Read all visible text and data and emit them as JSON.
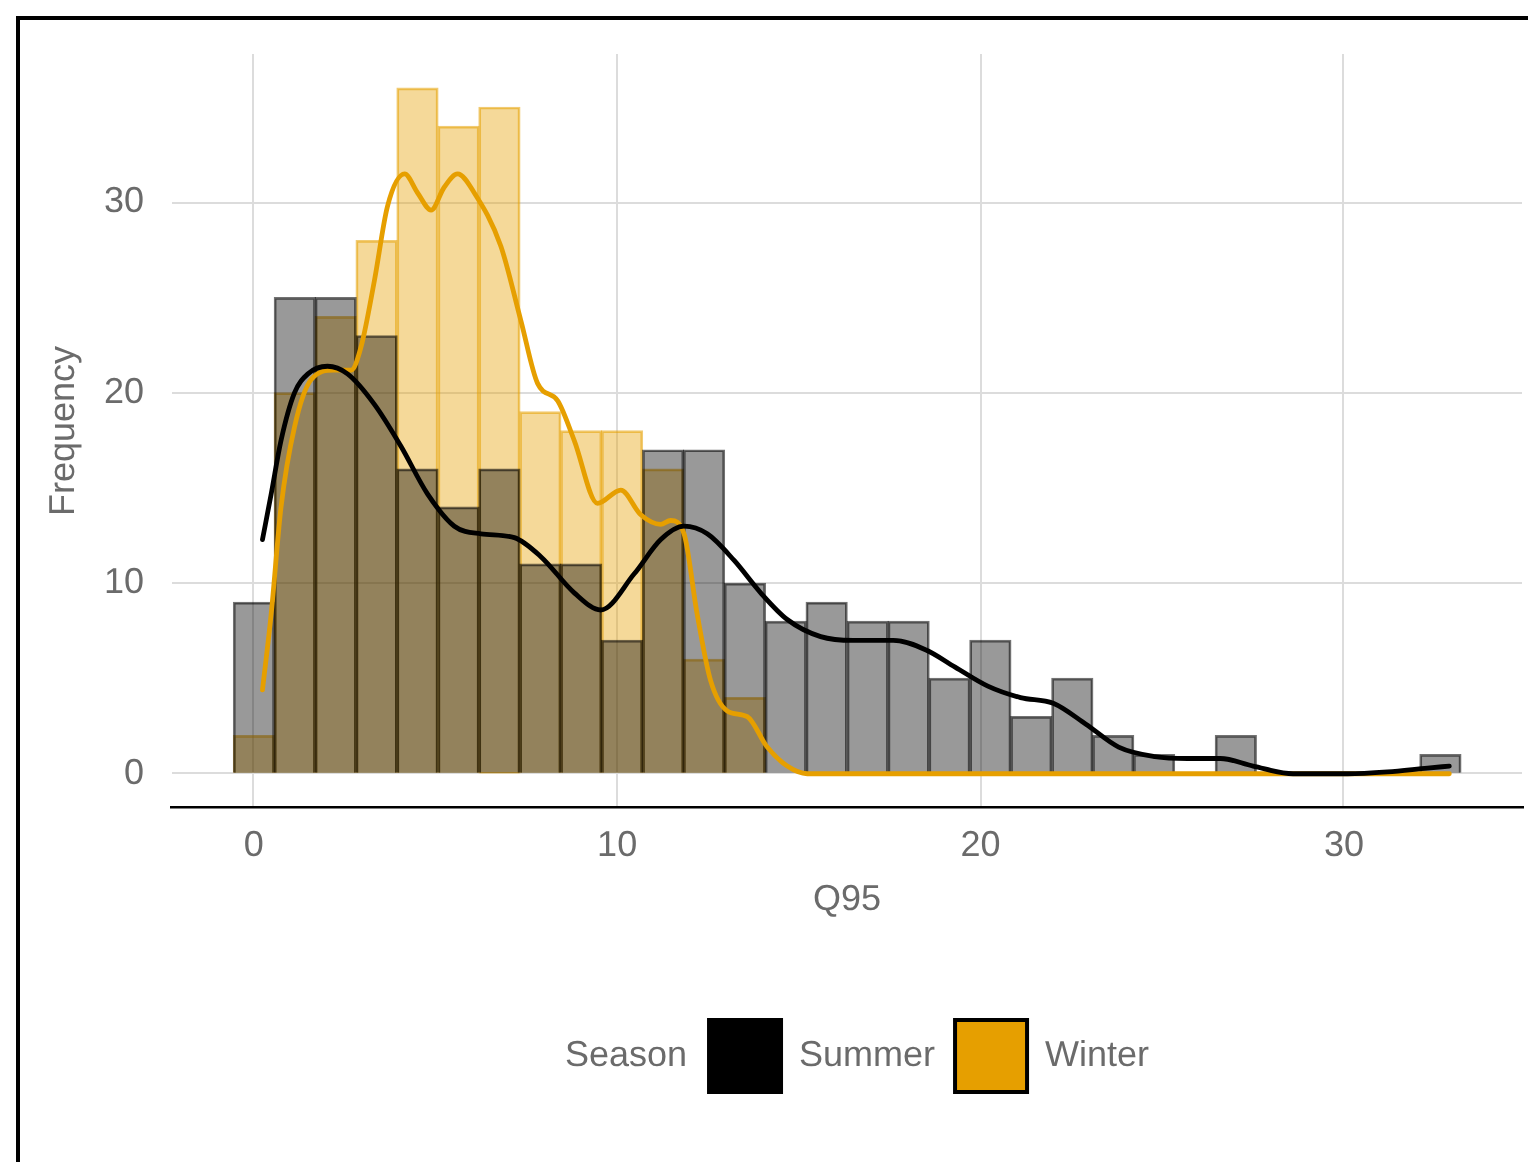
{
  "chart_data": {
    "type": "histogram",
    "xlabel": "Q95",
    "ylabel": "Frequency",
    "legend_title": "Season",
    "bins": [
      -0.56,
      0.57,
      1.69,
      2.82,
      3.94,
      5.07,
      6.2,
      7.32,
      8.45,
      9.57,
      10.7,
      11.83,
      12.95,
      14.08,
      15.2,
      16.33,
      17.46,
      18.58,
      19.71,
      20.83,
      21.96,
      23.09,
      24.21,
      25.34,
      26.46,
      27.59,
      28.72,
      29.84,
      30.97,
      32.09,
      33.22
    ],
    "series": [
      {
        "color": "#999999",
        "values": [
          9,
          25,
          25,
          23,
          16,
          14,
          16,
          11,
          11,
          7,
          17,
          17,
          10,
          8,
          9,
          8,
          8,
          5,
          7,
          3,
          5,
          2,
          1,
          0,
          2,
          0,
          0,
          0,
          0,
          1
        ]
      },
      {
        "color": "#f5d999",
        "values": [
          2,
          20,
          24,
          28,
          36,
          34,
          35,
          19,
          18,
          18,
          16,
          6,
          4,
          0,
          0,
          0,
          0,
          0,
          0,
          0,
          0,
          0,
          0,
          0,
          0,
          0,
          0,
          0,
          0,
          0
        ]
      },
      {
        "type": "line",
        "name": "Summer",
        "color": "#000000",
        "x": [
          0.24,
          0.48,
          0.75,
          1.12,
          1.49,
          2.03,
          2.58,
          3.32,
          4.05,
          4.78,
          5.52,
          6.25,
          7.17,
          7.9,
          8.82,
          9.55,
          10.47,
          11.2,
          11.84,
          12.48,
          13.22,
          13.95,
          14.68,
          15.6,
          16.5,
          17.6,
          18.5,
          19.3,
          20.2,
          21.1,
          22.0,
          22.9,
          23.8,
          24.8,
          25.7,
          26.6,
          27.5,
          28.6,
          30.1,
          31.2,
          32.3,
          32.9
        ],
        "values": [
          12.3,
          14.7,
          17.5,
          20.0,
          21.0,
          21.4,
          21.0,
          19.4,
          17.2,
          14.7,
          13.0,
          12.6,
          12.4,
          11.4,
          9.5,
          8.6,
          10.5,
          12.3,
          13.0,
          12.6,
          11.2,
          9.5,
          8.1,
          7.2,
          7.0,
          7.0,
          6.5,
          5.6,
          4.6,
          4.0,
          3.7,
          2.6,
          1.4,
          0.9,
          0.8,
          0.8,
          0.4,
          0.0,
          0.0,
          0.1,
          0.3,
          0.4
        ]
      },
      {
        "type": "line",
        "name": "Winter",
        "color": "#e69f00",
        "x": [
          0.24,
          0.48,
          0.75,
          1.12,
          1.58,
          2.22,
          2.68,
          2.95,
          3.32,
          3.68,
          4.15,
          4.51,
          4.88,
          5.24,
          5.61,
          6.07,
          6.8,
          7.35,
          7.81,
          8.36,
          8.82,
          9.46,
          10.1,
          10.65,
          11.2,
          11.47,
          11.84,
          12.2,
          12.57,
          13.03,
          13.58,
          14.13,
          14.68,
          15.23,
          16,
          20,
          25,
          30,
          32.9
        ],
        "values": [
          4.4,
          8.4,
          14.0,
          18.2,
          20.7,
          21.2,
          21.2,
          22.4,
          25.9,
          29.8,
          31.5,
          30.5,
          29.6,
          30.8,
          31.5,
          30.5,
          27.7,
          23.8,
          20.5,
          19.6,
          17.5,
          14.2,
          14.9,
          13.6,
          13.1,
          13.3,
          12.6,
          8.4,
          4.9,
          3.3,
          3.0,
          1.4,
          0.4,
          0,
          0,
          0,
          0,
          0,
          0
        ]
      }
    ],
    "xlim": [
      -2.25,
      34.9
    ],
    "ylim": [
      -1.8,
      37.8
    ],
    "xticks": [
      0,
      10,
      20,
      30
    ],
    "yticks": [
      0,
      10,
      20,
      30
    ],
    "grid": true,
    "legend": "bottom",
    "marker": "none"
  }
}
